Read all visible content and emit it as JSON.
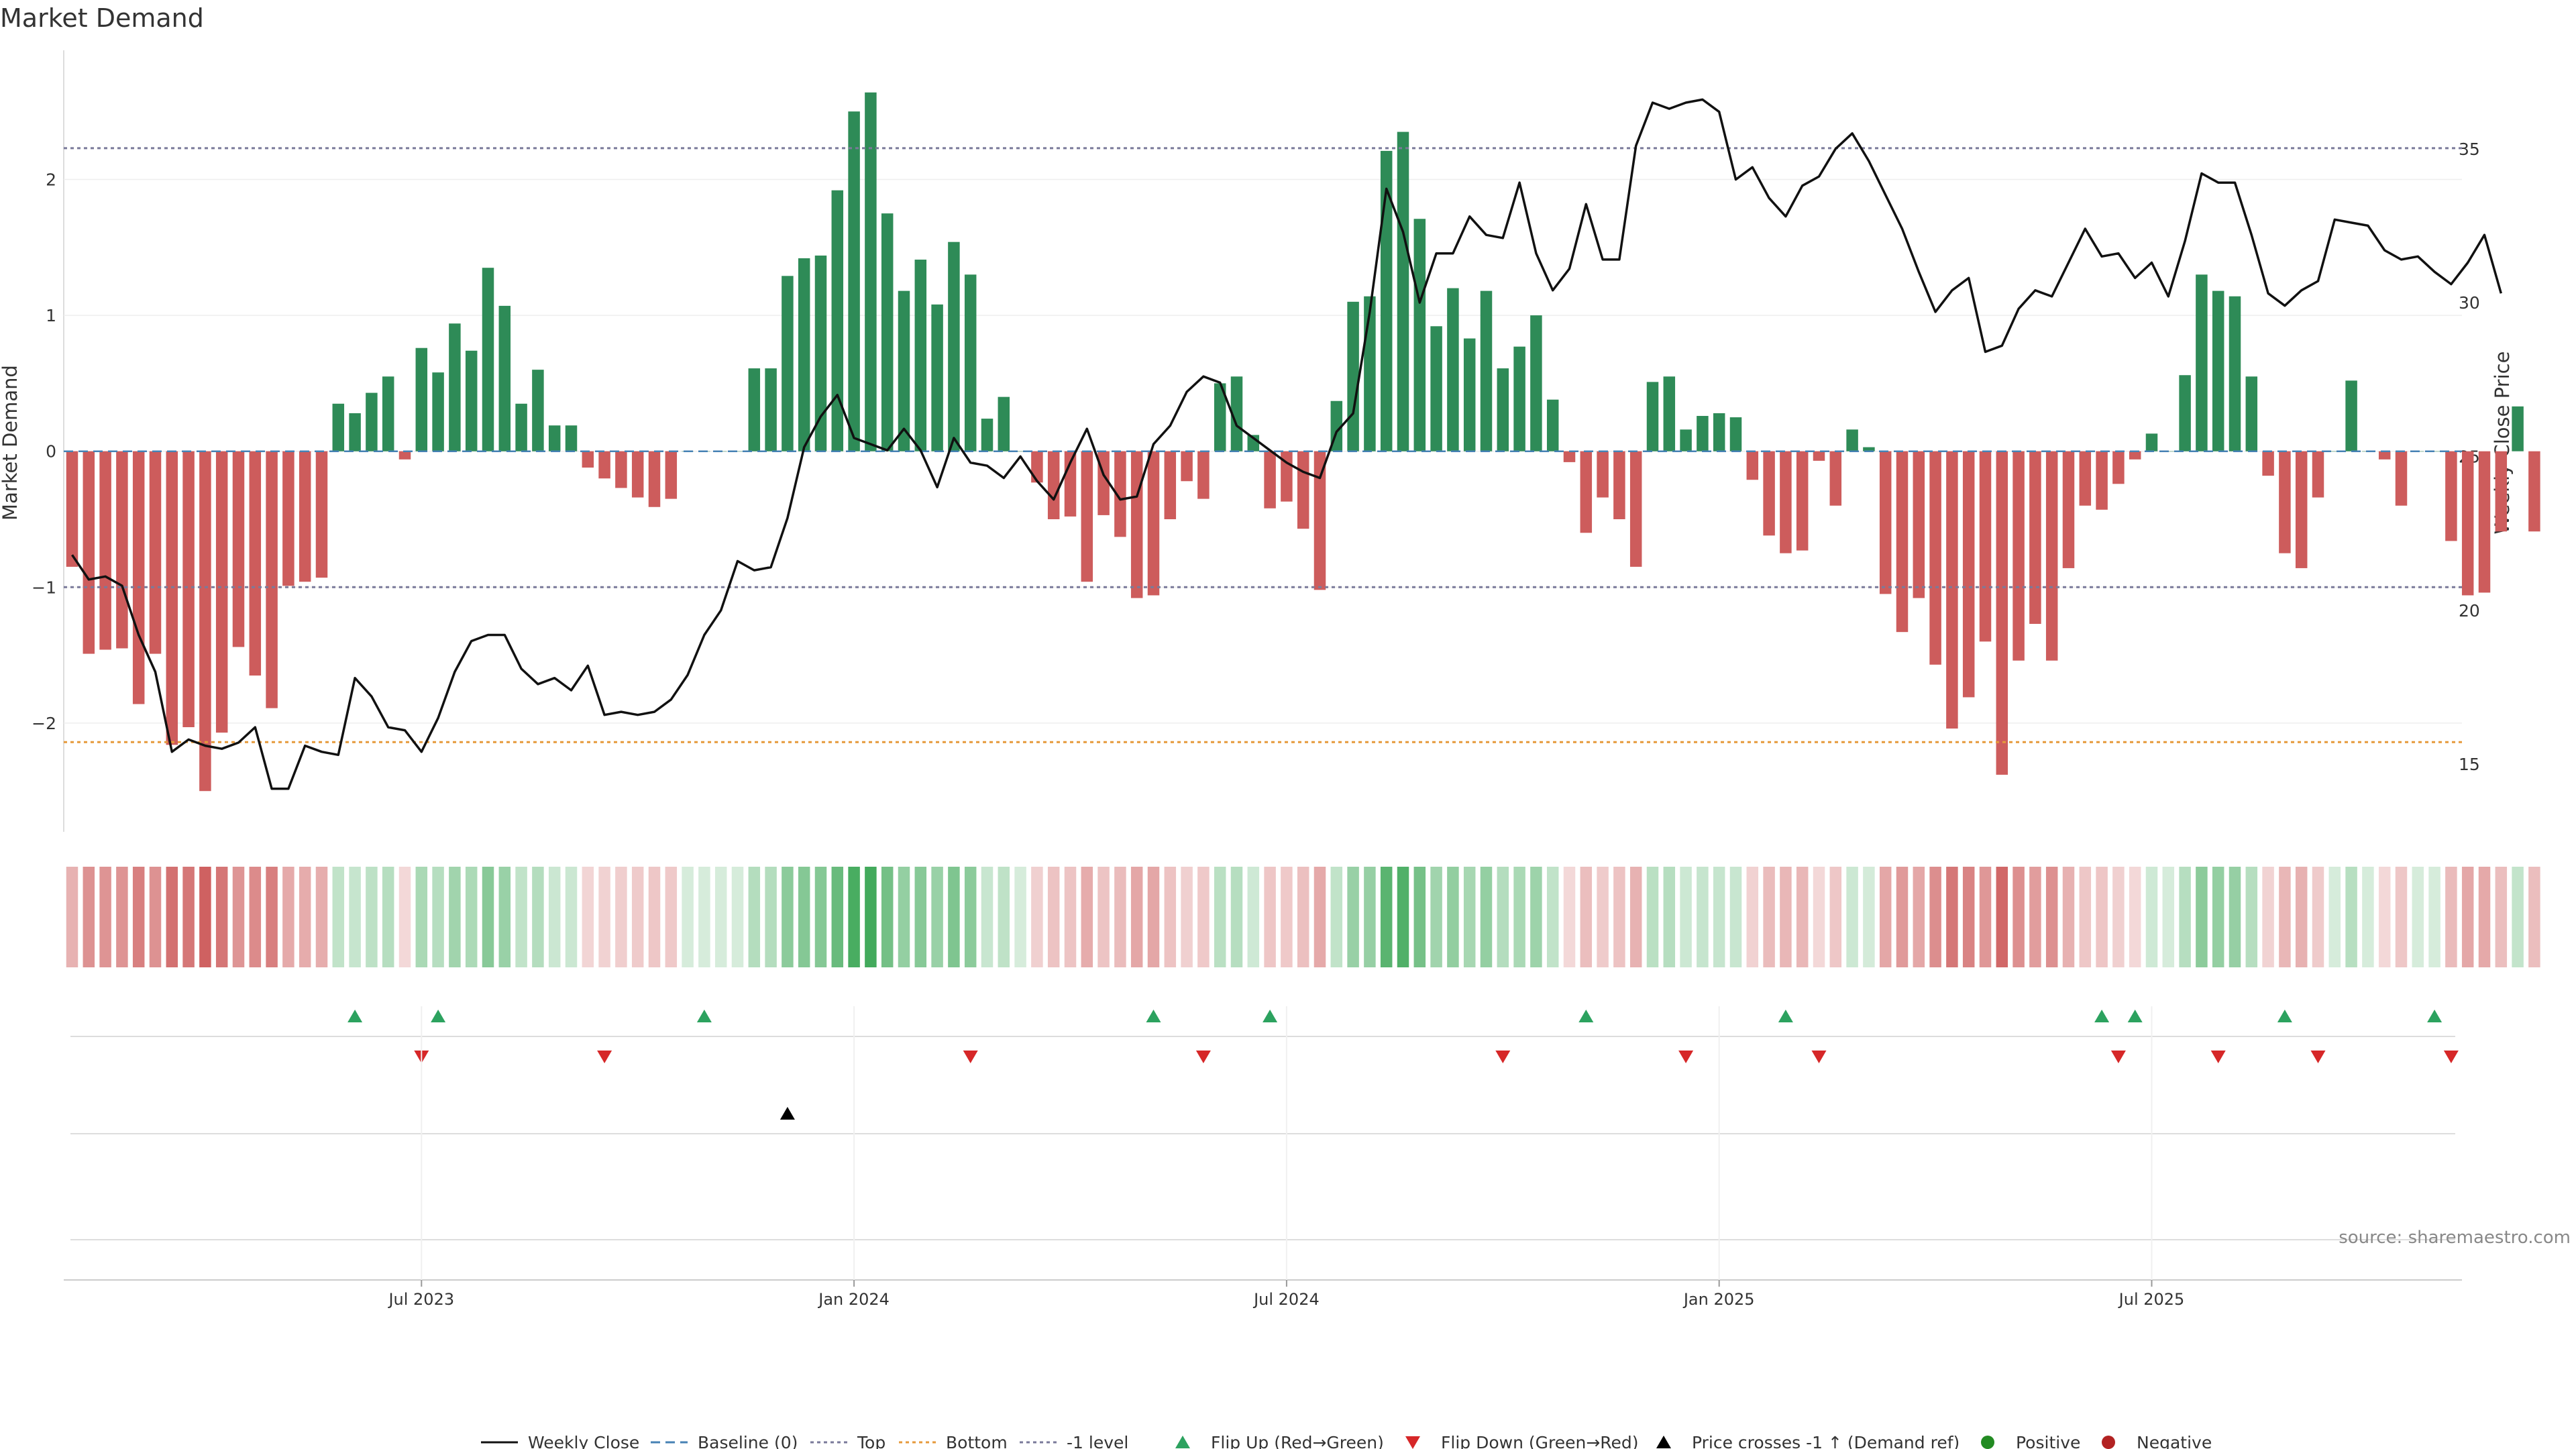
{
  "chart_data": {
    "type": "bar",
    "title": "Market Demand",
    "ylabel": "Market Demand",
    "y2label": "Weekly Close Price",
    "ylim": [
      -2.8,
      2.95
    ],
    "y2lim": [
      12.8,
      38.2
    ],
    "yticks": [
      -2,
      -1,
      0,
      1,
      2
    ],
    "ytick_labels": [
      "−2",
      "−1",
      "0",
      "1",
      "2"
    ],
    "y2ticks": [
      15,
      20,
      25,
      30,
      35
    ],
    "y2tick_labels": [
      "15",
      "20",
      "25",
      "30",
      "35"
    ],
    "x_date_ticks": [
      "Jul 2023",
      "Jan 2024",
      "Jul 2024",
      "Jan 2025",
      "Jul 2025"
    ],
    "x_tick_week_index": [
      21,
      47,
      73,
      99,
      125
    ],
    "ref_lines": {
      "top": 2.23,
      "bottom": -2.14,
      "minus_one": -1.0,
      "baseline": 0
    },
    "demand": [
      -0.85,
      -1.49,
      -1.46,
      -1.45,
      -1.86,
      -1.49,
      -2.16,
      -2.03,
      -2.5,
      -2.07,
      -1.44,
      -1.65,
      -1.89,
      -0.99,
      -0.96,
      -0.93,
      0.35,
      0.28,
      0.43,
      0.55,
      -0.06,
      0.76,
      0.58,
      0.94,
      0.74,
      1.35,
      1.07,
      0.35,
      0.6,
      0.19,
      0.19,
      -0.12,
      -0.2,
      -0.27,
      -0.34,
      -0.41,
      -0.35,
      0,
      0,
      0,
      0,
      0.61,
      0.61,
      1.29,
      1.42,
      1.44,
      1.92,
      2.5,
      2.64,
      1.75,
      1.18,
      1.41,
      1.08,
      1.54,
      1.3,
      0.24,
      0.4,
      0,
      -0.23,
      -0.5,
      -0.48,
      -0.96,
      -0.47,
      -0.63,
      -1.08,
      -1.06,
      -0.5,
      -0.22,
      -0.35,
      0.5,
      0.55,
      0.12,
      -0.42,
      -0.37,
      -0.57,
      -1.02,
      0.37,
      1.1,
      1.14,
      2.21,
      2.35,
      1.71,
      0.92,
      1.2,
      0.83,
      1.18,
      0.61,
      0.77,
      1.0,
      0.38,
      -0.08,
      -0.6,
      -0.34,
      -0.5,
      -0.85,
      0.51,
      0.55,
      0.16,
      0.26,
      0.28,
      0.25,
      -0.21,
      -0.62,
      -0.75,
      -0.73,
      -0.07,
      -0.4,
      0.16,
      0.03,
      -1.05,
      -1.33,
      -1.08,
      -1.57,
      -2.04,
      -1.81,
      -1.4,
      -2.38,
      -1.54,
      -1.27,
      -1.54,
      -0.86,
      -0.4,
      -0.43,
      -0.24,
      -0.06,
      0.13,
      0.0,
      0.56,
      1.3,
      1.18,
      1.14,
      0.55,
      -0.18,
      -0.75,
      -0.86,
      -0.34,
      0.0,
      0.52,
      0.0,
      -0.06,
      -0.4,
      0.0,
      0.0,
      -0.66,
      -1.06,
      -1.04,
      -0.59,
      0.33,
      -0.59
    ],
    "price_series": {
      "name": "Weekly Close",
      "values": [
        21.8,
        21.0,
        21.1,
        20.8,
        19.2,
        18.0,
        15.4,
        15.8,
        15.6,
        15.5,
        15.7,
        16.2,
        14.2,
        14.2,
        15.6,
        15.4,
        15.3,
        17.8,
        17.2,
        16.2,
        16.1,
        15.4,
        16.5,
        18.0,
        19.0,
        19.2,
        19.2,
        18.1,
        17.6,
        17.8,
        17.4,
        18.2,
        16.6,
        16.7,
        16.6,
        16.7,
        17.1,
        17.9,
        19.2,
        20.0,
        21.6,
        21.3,
        21.4,
        23.0,
        25.3,
        26.3,
        27.0,
        25.6,
        25.4,
        25.2,
        25.9,
        25.2,
        24.0,
        25.6,
        24.8,
        24.7,
        24.3,
        25.0,
        24.2,
        23.6,
        24.8,
        25.9,
        24.4,
        23.6,
        23.7,
        25.4,
        26.0,
        27.1,
        27.6,
        27.4,
        26.0,
        25.6,
        25.2,
        24.8,
        24.5,
        24.3,
        25.8,
        26.4,
        29.7,
        33.7,
        32.3,
        30.0,
        31.6,
        31.6,
        32.8,
        32.2,
        32.1,
        33.9,
        31.6,
        30.4,
        31.1,
        33.2,
        31.4,
        31.4,
        35.1,
        36.5,
        36.3,
        36.5,
        36.6,
        36.2,
        34.0,
        34.4,
        33.4,
        32.8,
        33.8,
        34.1,
        35.0,
        35.5,
        34.6,
        33.5,
        32.4,
        31.0,
        29.7,
        30.4,
        30.8,
        28.4,
        28.6,
        29.8,
        30.4,
        30.2,
        31.3,
        32.4,
        31.5,
        31.6,
        30.8,
        31.3,
        30.2,
        32.0,
        34.2,
        33.9,
        33.9,
        32.2,
        30.3,
        29.9,
        30.4,
        30.7,
        32.7,
        32.6,
        32.5,
        31.7,
        31.4,
        31.5,
        31.0,
        30.6,
        31.3,
        32.2,
        30.3
      ]
    },
    "flip_up_weeks": [
      17,
      22,
      38,
      65,
      72,
      91,
      103,
      122,
      124,
      133,
      142
    ],
    "flip_down_weeks": [
      21,
      32,
      54,
      68,
      86,
      97,
      105,
      123,
      129,
      135,
      143
    ],
    "price_cross_weeks": [
      43
    ],
    "series_legend": [
      "Weekly Close",
      "Baseline (0)",
      "Top",
      "Bottom",
      "-1 level",
      "Flip Up (Red→Green)",
      "Flip Down (Green→Red)",
      "Price crosses -1 ↑ (Demand ref)",
      "Positive",
      "Negative"
    ],
    "source_note": "source: sharemaestro.com"
  },
  "colors": {
    "positive": "#2e8b57",
    "negative": "#cd5c5c",
    "flip_up": "#2ca25f",
    "flip_down": "#d62728",
    "price": "#111111",
    "top_line": "#7a7a9a",
    "bottom_line": "#e69a3c",
    "baseline": "#4682b4",
    "legend_positive": "#228b22",
    "legend_negative": "#b22222"
  }
}
